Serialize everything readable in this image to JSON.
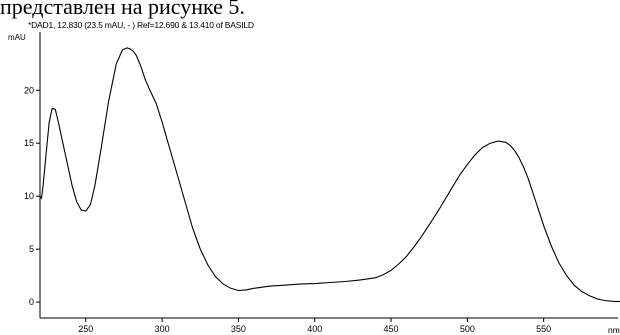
{
  "caption_line": "представлен на рисунке 5.",
  "chart_data": {
    "type": "line",
    "title": "*DAD1, 12.830 (23.5 mAU, - ) Ref=12.690 & 13.410 of BASILD",
    "ylabel": "mAU",
    "xlabel": "nm",
    "xlim": [
      220,
      600
    ],
    "ylim": [
      -1.5,
      25.5
    ],
    "x_ticks": [
      250,
      300,
      350,
      400,
      450,
      500,
      550
    ],
    "y_ticks": [
      0,
      5,
      10,
      15,
      20
    ],
    "grid": false,
    "series": [
      {
        "x": [
          220,
          221,
          222,
          224,
          226,
          228,
          230,
          232,
          235,
          238,
          241,
          244,
          247,
          250,
          253,
          256,
          260,
          265,
          270,
          274,
          277,
          279,
          281,
          283,
          286,
          289,
          292,
          296,
          300,
          305,
          310,
          315,
          320,
          325,
          330,
          335,
          340,
          345,
          350,
          355,
          360,
          365,
          370,
          380,
          390,
          400,
          410,
          420,
          430,
          440,
          445,
          450,
          455,
          460,
          465,
          470,
          475,
          480,
          485,
          490,
          495,
          500,
          505,
          510,
          515,
          520,
          525,
          528,
          531,
          534,
          537,
          540,
          545,
          550,
          555,
          560,
          565,
          570,
          575,
          580,
          585,
          590,
          595,
          600
        ],
        "y": [
          10,
          9.8,
          11,
          14,
          17,
          18.3,
          18.2,
          17,
          15,
          13,
          11,
          9.5,
          8.7,
          8.6,
          9.2,
          11,
          14.5,
          19,
          22.5,
          23.8,
          24,
          23.9,
          23.7,
          23.3,
          22.3,
          21,
          20,
          18.8,
          17,
          14.5,
          12,
          9.5,
          7,
          5,
          3.5,
          2.4,
          1.7,
          1.3,
          1.1,
          1.15,
          1.3,
          1.4,
          1.5,
          1.6,
          1.7,
          1.75,
          1.85,
          1.95,
          2.1,
          2.3,
          2.6,
          3,
          3.6,
          4.3,
          5.2,
          6.2,
          7.3,
          8.4,
          9.6,
          10.8,
          12,
          13,
          13.9,
          14.6,
          15,
          15.2,
          15.1,
          14.8,
          14.3,
          13.6,
          12.7,
          11.6,
          9.4,
          7.2,
          5.3,
          3.7,
          2.5,
          1.6,
          1,
          0.6,
          0.3,
          0.15,
          0.08,
          0.05
        ]
      }
    ]
  }
}
